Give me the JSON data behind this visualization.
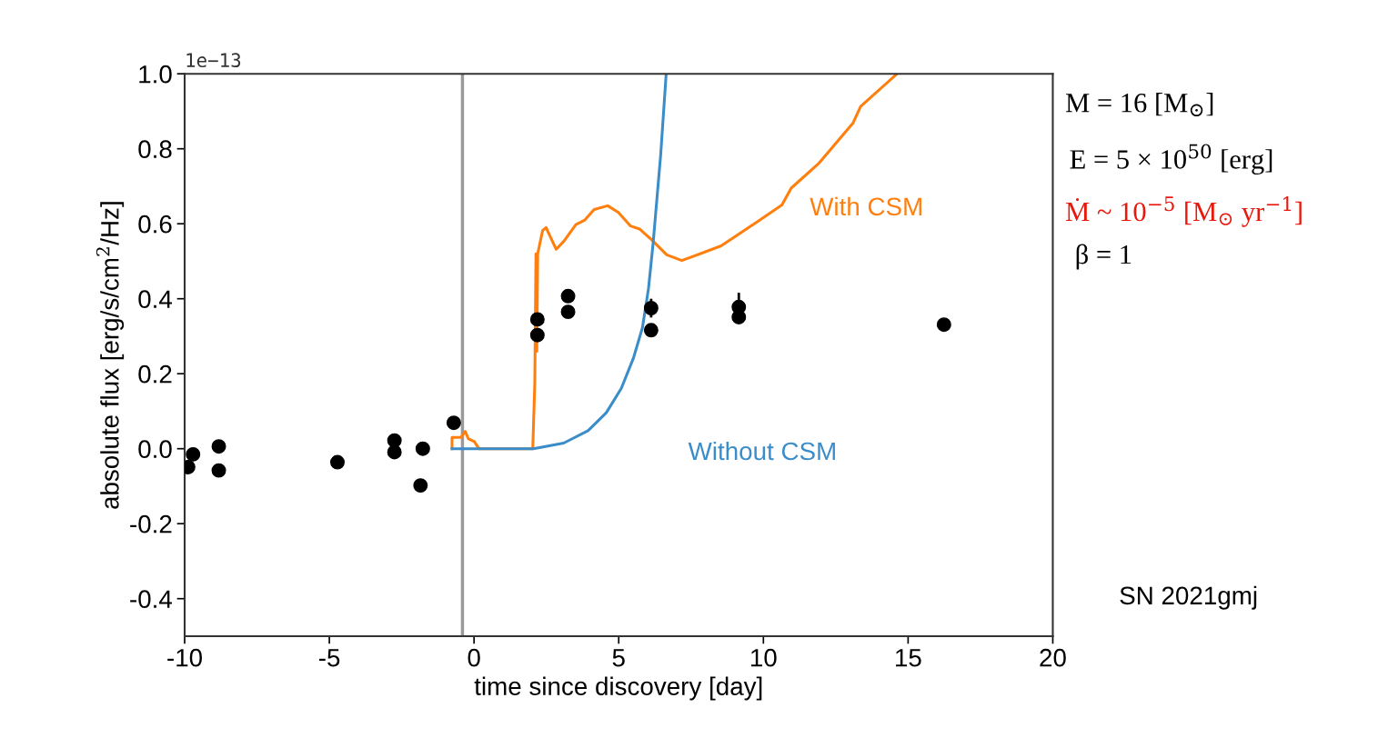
{
  "chart_data": {
    "type": "line",
    "xlabel": "time since discovery [day]",
    "ylabel": "absolute flux [erg/s/cm$^{2}$/Hz]",
    "xlim": [
      -10,
      20
    ],
    "xticks": [
      {
        "value": -10,
        "label": "-10"
      },
      {
        "value": -5,
        "label": "-5"
      },
      0,
      5,
      10,
      15,
      20
    ],
    "ylim": [
      -0.5,
      1.0
    ],
    "yticks": [
      {
        "value": -0.4,
        "label": "-0.4"
      },
      {
        "value": -0.2,
        "label": "-0.2"
      },
      {
        "value": 0,
        "label": "0.0"
      },
      {
        "value": 0.2,
        "label": "0.2"
      },
      {
        "value": 0.4,
        "label": "0.4"
      },
      {
        "value": 0.6,
        "label": "0.6"
      },
      {
        "value": 0.8,
        "label": "0.8"
      },
      {
        "value": 1.0,
        "label": "1.0"
      }
    ],
    "grid": false,
    "legend": false,
    "ref_lines": [
      {
        "axis": "x",
        "value": -0.4,
        "label": null,
        "color": "#999999"
      }
    ],
    "series": [
      {
        "name": "With CSM",
        "color": "#ff7f0e",
        "marker": "none",
        "line_style": "solid",
        "x": [
          -0.76,
          -0.76,
          -0.46,
          -0.3,
          -0.2,
          0.01,
          0.17,
          2.03,
          2.1,
          2.14,
          2.17,
          2.2,
          2.37,
          2.49,
          2.63,
          2.84,
          3.1,
          3.52,
          3.83,
          4.15,
          4.62,
          4.99,
          5.41,
          5.72,
          6.14,
          6.66,
          7.18,
          8.54,
          9.8,
          10.64,
          10.96,
          11.9,
          13.1,
          13.36,
          14.62
        ],
        "values": [
          0,
          0.03,
          0.03,
          0.046,
          0.027,
          0.019,
          0,
          0,
          0.177,
          0.52,
          0.26,
          0.52,
          0.582,
          0.59,
          0.566,
          0.532,
          0.553,
          0.598,
          0.61,
          0.638,
          0.648,
          0.63,
          0.594,
          0.586,
          0.557,
          0.517,
          0.502,
          0.541,
          0.606,
          0.65,
          0.695,
          0.76,
          0.869,
          0.913,
          1.0
        ]
      },
      {
        "name": "Without CSM",
        "color": "#3a8dc8",
        "marker": "none",
        "line_style": "solid",
        "x": [
          -0.76,
          2.05,
          3.1,
          3.94,
          4.57,
          5.09,
          5.51,
          5.82,
          6.03,
          6.19,
          6.45,
          6.64
        ],
        "values": [
          0,
          0,
          0.015,
          0.048,
          0.096,
          0.161,
          0.242,
          0.323,
          0.428,
          0.549,
          0.784,
          1.0
        ]
      },
      {
        "type": "scatter",
        "color": "#000000",
        "marker": "circle",
        "x": [
          -9.88,
          -9.71,
          -8.82,
          -8.82,
          -4.72,
          -2.75,
          -2.75,
          -1.77,
          -1.85,
          -0.7,
          2.19,
          2.19,
          3.25,
          3.25,
          6.12,
          6.12,
          9.15,
          9.15,
          16.24
        ],
        "values": [
          -0.049,
          -0.015,
          0.006,
          -0.058,
          -0.036,
          0.022,
          -0.009,
          0.0,
          -0.098,
          0.069,
          0.345,
          0.303,
          0.407,
          0.365,
          0.375,
          0.316,
          0.378,
          0.351,
          0.331
        ],
        "errors": [
          null,
          null,
          null,
          null,
          null,
          null,
          null,
          null,
          null,
          null,
          null,
          null,
          null,
          null,
          0.025,
          null,
          0.038,
          null,
          null
        ]
      }
    ],
    "annotations": [
      "1e−13",
      "M = 16 [M$_{⊙}$]",
      "E = 5 × 10$^{50}$ [erg]",
      "Ṁ ~ 10$^{−5}$ [M$_{⊙}$ yr$^{−1}$]",
      "β = 1",
      "SN 2021gmj"
    ]
  }
}
